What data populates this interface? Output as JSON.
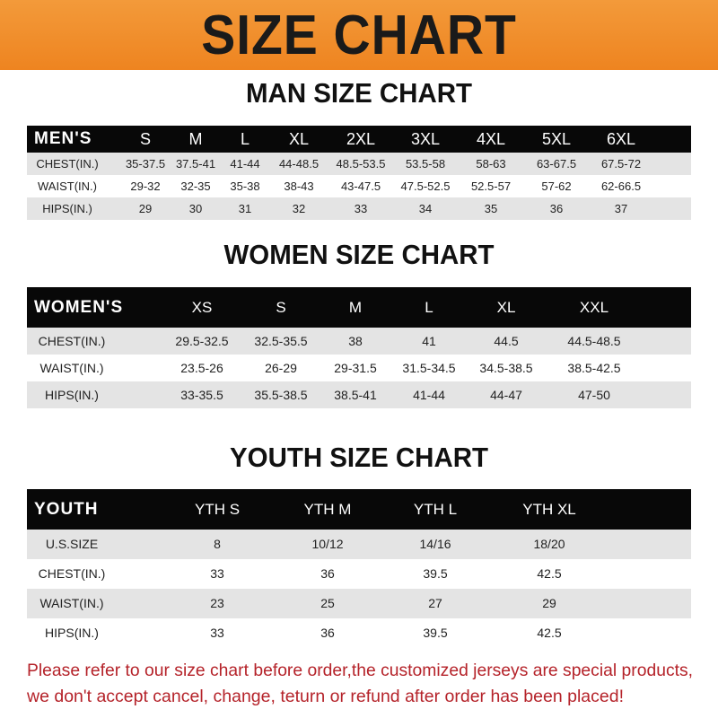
{
  "title": "SIZE CHART",
  "colors": {
    "banner": "#f08a28",
    "header_row": "#080808",
    "stripe": "#e4e4e4",
    "notice": "#b5232a"
  },
  "men": {
    "title": "MAN SIZE CHART",
    "header": [
      "MEN'S",
      "S",
      "M",
      "L",
      "XL",
      "2XL",
      "3XL",
      "4XL",
      "5XL",
      "6XL"
    ],
    "rows": [
      [
        "CHEST(IN.)",
        "35-37.5",
        "37.5-41",
        "41-44",
        "44-48.5",
        "48.5-53.5",
        "53.5-58",
        "58-63",
        "63-67.5",
        "67.5-72"
      ],
      [
        "WAIST(IN.)",
        "29-32",
        "32-35",
        "35-38",
        "38-43",
        "43-47.5",
        "47.5-52.5",
        "52.5-57",
        "57-62",
        "62-66.5"
      ],
      [
        "HIPS(IN.)",
        "29",
        "30",
        "31",
        "32",
        "33",
        "34",
        "35",
        "36",
        "37"
      ]
    ]
  },
  "women": {
    "title": "WOMEN SIZE CHART",
    "header": [
      "WOMEN'S",
      "XS",
      "S",
      "M",
      "L",
      "XL",
      "XXL"
    ],
    "rows": [
      [
        "CHEST(IN.)",
        "29.5-32.5",
        "32.5-35.5",
        "38",
        "41",
        "44.5",
        "44.5-48.5"
      ],
      [
        "WAIST(IN.)",
        "23.5-26",
        "26-29",
        "29-31.5",
        "31.5-34.5",
        "34.5-38.5",
        "38.5-42.5"
      ],
      [
        "HIPS(IN.)",
        "33-35.5",
        "35.5-38.5",
        "38.5-41",
        "41-44",
        "44-47",
        "47-50"
      ]
    ]
  },
  "youth": {
    "title": "YOUTH SIZE CHART",
    "header": [
      "YOUTH",
      "YTH S",
      "YTH M",
      "YTH L",
      "YTH XL"
    ],
    "rows": [
      [
        "U.S.SIZE",
        "8",
        "10/12",
        "14/16",
        "18/20"
      ],
      [
        "CHEST(IN.)",
        "33",
        "36",
        "39.5",
        "42.5"
      ],
      [
        "WAIST(IN.)",
        "23",
        "25",
        "27",
        "29"
      ],
      [
        "HIPS(IN.)",
        "33",
        "36",
        "39.5",
        "42.5"
      ]
    ]
  },
  "notice": {
    "line1": "Please refer to our size chart before order,the customized jerseys are special products,",
    "line2": "we don't accept cancel, change, teturn or refund after order has been placed!"
  }
}
